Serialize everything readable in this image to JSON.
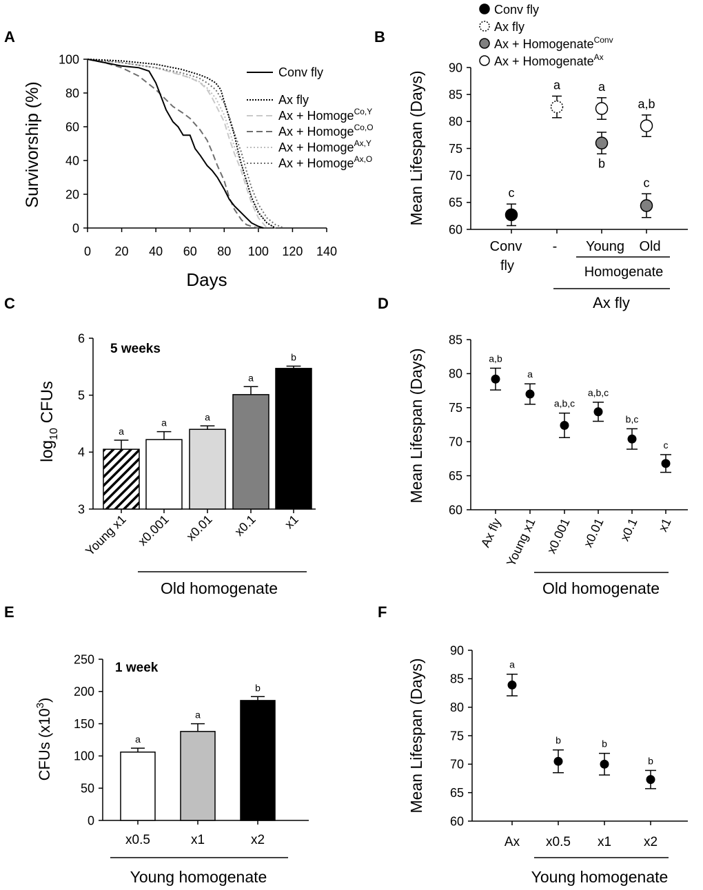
{
  "figure": {
    "panel_letters": [
      "A",
      "B",
      "C",
      "D",
      "E",
      "F"
    ]
  },
  "chart_data": [
    {
      "panel": "A",
      "type": "line",
      "xlabel": "Days",
      "ylabel": "Survivorship (%)",
      "xlim": [
        0,
        140
      ],
      "ylim": [
        0,
        100
      ],
      "xticks": [
        0,
        20,
        40,
        60,
        80,
        100,
        120,
        140
      ],
      "yticks": [
        0,
        20,
        40,
        60,
        80,
        100
      ],
      "series": [
        {
          "name": "Conv fly",
          "label_main": "Conv fly",
          "label_sup": "",
          "color": "#000000",
          "dash": "",
          "width": 2,
          "x": [
            0,
            10,
            20,
            30,
            36,
            40,
            43,
            46,
            50,
            53,
            56,
            60,
            63,
            66,
            70,
            73,
            76,
            80,
            83,
            86,
            90,
            93,
            96,
            100,
            103
          ],
          "y": [
            100,
            98,
            96,
            95,
            93,
            86,
            78,
            70,
            63,
            60,
            55,
            55,
            47,
            43,
            37,
            34,
            30,
            23,
            17,
            13,
            9,
            6,
            3,
            1,
            0
          ]
        },
        {
          "name": "Ax fly",
          "label_main": "Ax fly",
          "label_sup": "",
          "color": "#000000",
          "dash": "2,2",
          "width": 2,
          "x": [
            0,
            20,
            40,
            55,
            65,
            70,
            75,
            78,
            80,
            83,
            86,
            88,
            90,
            93,
            96,
            100,
            105,
            110
          ],
          "y": [
            100,
            99,
            97,
            94,
            91,
            89,
            86,
            82,
            75,
            65,
            55,
            46,
            38,
            28,
            18,
            9,
            3,
            0
          ]
        },
        {
          "name": "Ax + Homoge Co,Y",
          "label_main": "Ax + Homoge",
          "label_sup": "Co,Y",
          "color": "#c9c9c9",
          "dash": "9,5",
          "width": 2,
          "x": [
            0,
            20,
            40,
            50,
            60,
            66,
            70,
            73,
            76,
            80,
            83,
            86,
            90,
            93,
            96,
            100,
            105
          ],
          "y": [
            100,
            98,
            95,
            92,
            89,
            86,
            82,
            77,
            71,
            63,
            53,
            44,
            34,
            24,
            15,
            6,
            0
          ]
        },
        {
          "name": "Ax + Homoge Co,O",
          "label_main": "Ax + Homoge",
          "label_sup": "Co,O",
          "color": "#6e6e6e",
          "dash": "9,5",
          "width": 2,
          "x": [
            0,
            10,
            20,
            30,
            40,
            46,
            50,
            56,
            60,
            66,
            70,
            73,
            76,
            80,
            83,
            86,
            90,
            93,
            96,
            100
          ],
          "y": [
            100,
            98,
            95,
            90,
            82,
            76,
            72,
            68,
            65,
            58,
            52,
            45,
            37,
            28,
            18,
            11,
            5,
            2,
            1,
            0
          ]
        },
        {
          "name": "Ax + Homoge Ax,Y",
          "label_main": "Ax + Homoge",
          "label_sup": "Ax,Y",
          "color": "#bdbdbd",
          "dash": "2,3",
          "width": 2,
          "x": [
            0,
            20,
            40,
            55,
            65,
            70,
            75,
            80,
            83,
            86,
            90,
            93,
            96,
            100,
            105,
            110
          ],
          "y": [
            100,
            98,
            95,
            91,
            87,
            83,
            77,
            67,
            58,
            48,
            38,
            28,
            19,
            10,
            3,
            0
          ]
        },
        {
          "name": "Ax + Homoge Ax,O",
          "label_main": "Ax + Homoge",
          "label_sup": "Ax,O",
          "color": "#6e6e6e",
          "dash": "2,3",
          "width": 2,
          "x": [
            0,
            20,
            40,
            55,
            65,
            70,
            75,
            80,
            83,
            86,
            90,
            93,
            96,
            100,
            105,
            110,
            115
          ],
          "y": [
            100,
            98,
            95,
            92,
            89,
            86,
            82,
            74,
            66,
            56,
            45,
            34,
            24,
            14,
            6,
            2,
            0
          ]
        }
      ]
    },
    {
      "panel": "B",
      "type": "scatter",
      "ylabel": "Mean Lifespan (Days)",
      "ylim": [
        60,
        90
      ],
      "yticks": [
        60,
        65,
        70,
        75,
        80,
        85,
        90
      ],
      "categories": [
        "Conv fly",
        "-",
        "Young",
        "Old"
      ],
      "category_lines": [
        [
          "Conv"
        ],
        [
          "-"
        ],
        [
          "Young"
        ],
        [
          "Old"
        ]
      ],
      "group_label_1": "Homogenate",
      "group_label_2": "Ax fly",
      "fly_label": "fly",
      "legend": [
        {
          "label": "Conv fly",
          "sup": "",
          "style": "black"
        },
        {
          "label": "Ax fly",
          "sup": "",
          "style": "dotted"
        },
        {
          "label": "Ax + Homogenate",
          "sup": "Conv",
          "style": "gray"
        },
        {
          "label": "Ax + Homogenate",
          "sup": "Ax",
          "style": "white"
        }
      ],
      "points": [
        {
          "category": 0,
          "value": 62.7,
          "err": 2.0,
          "style": "black",
          "letter": "c",
          "letter_pos": "above"
        },
        {
          "category": 1,
          "value": 82.7,
          "err": 2.0,
          "style": "dotted",
          "letter": "a",
          "letter_pos": "above"
        },
        {
          "category": 2,
          "value": 82.4,
          "err": 2.0,
          "style": "white",
          "letter": "a",
          "letter_pos": "above"
        },
        {
          "category": 2,
          "value": 76.0,
          "err": 2.0,
          "style": "gray",
          "letter": "b",
          "letter_pos": "below"
        },
        {
          "category": 3,
          "value": 79.2,
          "err": 2.0,
          "style": "white",
          "letter": "a,b",
          "letter_pos": "above"
        },
        {
          "category": 3,
          "value": 64.4,
          "err": 2.2,
          "style": "gray",
          "letter": "c",
          "letter_pos": "above"
        }
      ]
    },
    {
      "panel": "C",
      "type": "bar",
      "ylabel_main": "log",
      "ylabel_sub": "10",
      "ylabel_rest": " CFUs",
      "annotation": "5 weeks",
      "ylim": [
        3,
        6
      ],
      "yticks": [
        3,
        4,
        5,
        6
      ],
      "categories": [
        "Young x1",
        "x0.001",
        "x0.01",
        "x0.1",
        "x1"
      ],
      "values": [
        4.05,
        4.22,
        4.4,
        5.01,
        5.47
      ],
      "errors": [
        0.16,
        0.14,
        0.06,
        0.14,
        0.04
      ],
      "fills": [
        "hatch",
        "#ffffff",
        "#d9d9d9",
        "#808080",
        "#000000"
      ],
      "letters": [
        "a",
        "a",
        "a",
        "a",
        "b"
      ],
      "group_label": "Old homogenate"
    },
    {
      "panel": "D",
      "type": "scatter",
      "ylabel": "Mean Lifespan (Days)",
      "ylim": [
        60,
        85
      ],
      "yticks": [
        60,
        65,
        70,
        75,
        80,
        85
      ],
      "categories": [
        "Ax fly",
        "Young x1",
        "x0.001",
        "x0.01",
        "x0.1",
        "x1"
      ],
      "values": [
        79.2,
        77.0,
        72.4,
        74.4,
        70.4,
        66.8
      ],
      "errors": [
        1.6,
        1.5,
        1.8,
        1.4,
        1.5,
        1.3
      ],
      "letters": [
        "a,b",
        "a",
        "a,b,c",
        "a,b,c",
        "b,c",
        "c"
      ],
      "group_label": "Old homogenate"
    },
    {
      "panel": "E",
      "type": "bar",
      "ylabel_main": "CFUs (x10",
      "ylabel_sup": "3",
      "ylabel_rest": ")",
      "annotation": "1 week",
      "ylim": [
        0,
        250
      ],
      "yticks": [
        0,
        50,
        100,
        150,
        200,
        250
      ],
      "categories": [
        "x0.5",
        "x1",
        "x2"
      ],
      "values": [
        106,
        138,
        186
      ],
      "errors": [
        6,
        12,
        6
      ],
      "fills": [
        "#ffffff",
        "#bfbfbf",
        "#000000"
      ],
      "letters": [
        "a",
        "a",
        "b"
      ],
      "group_label": "Young homogenate"
    },
    {
      "panel": "F",
      "type": "scatter",
      "ylabel": "Mean Lifespan (Days)",
      "ylim": [
        60,
        90
      ],
      "yticks": [
        60,
        65,
        70,
        75,
        80,
        85,
        90
      ],
      "categories": [
        "Ax",
        "x0.5",
        "x1",
        "x2"
      ],
      "values": [
        83.9,
        70.5,
        70.0,
        67.3
      ],
      "errors": [
        1.9,
        2.0,
        1.9,
        1.6
      ],
      "letters": [
        "a",
        "b",
        "b",
        "b"
      ],
      "group_label": "Young homogenate"
    }
  ]
}
